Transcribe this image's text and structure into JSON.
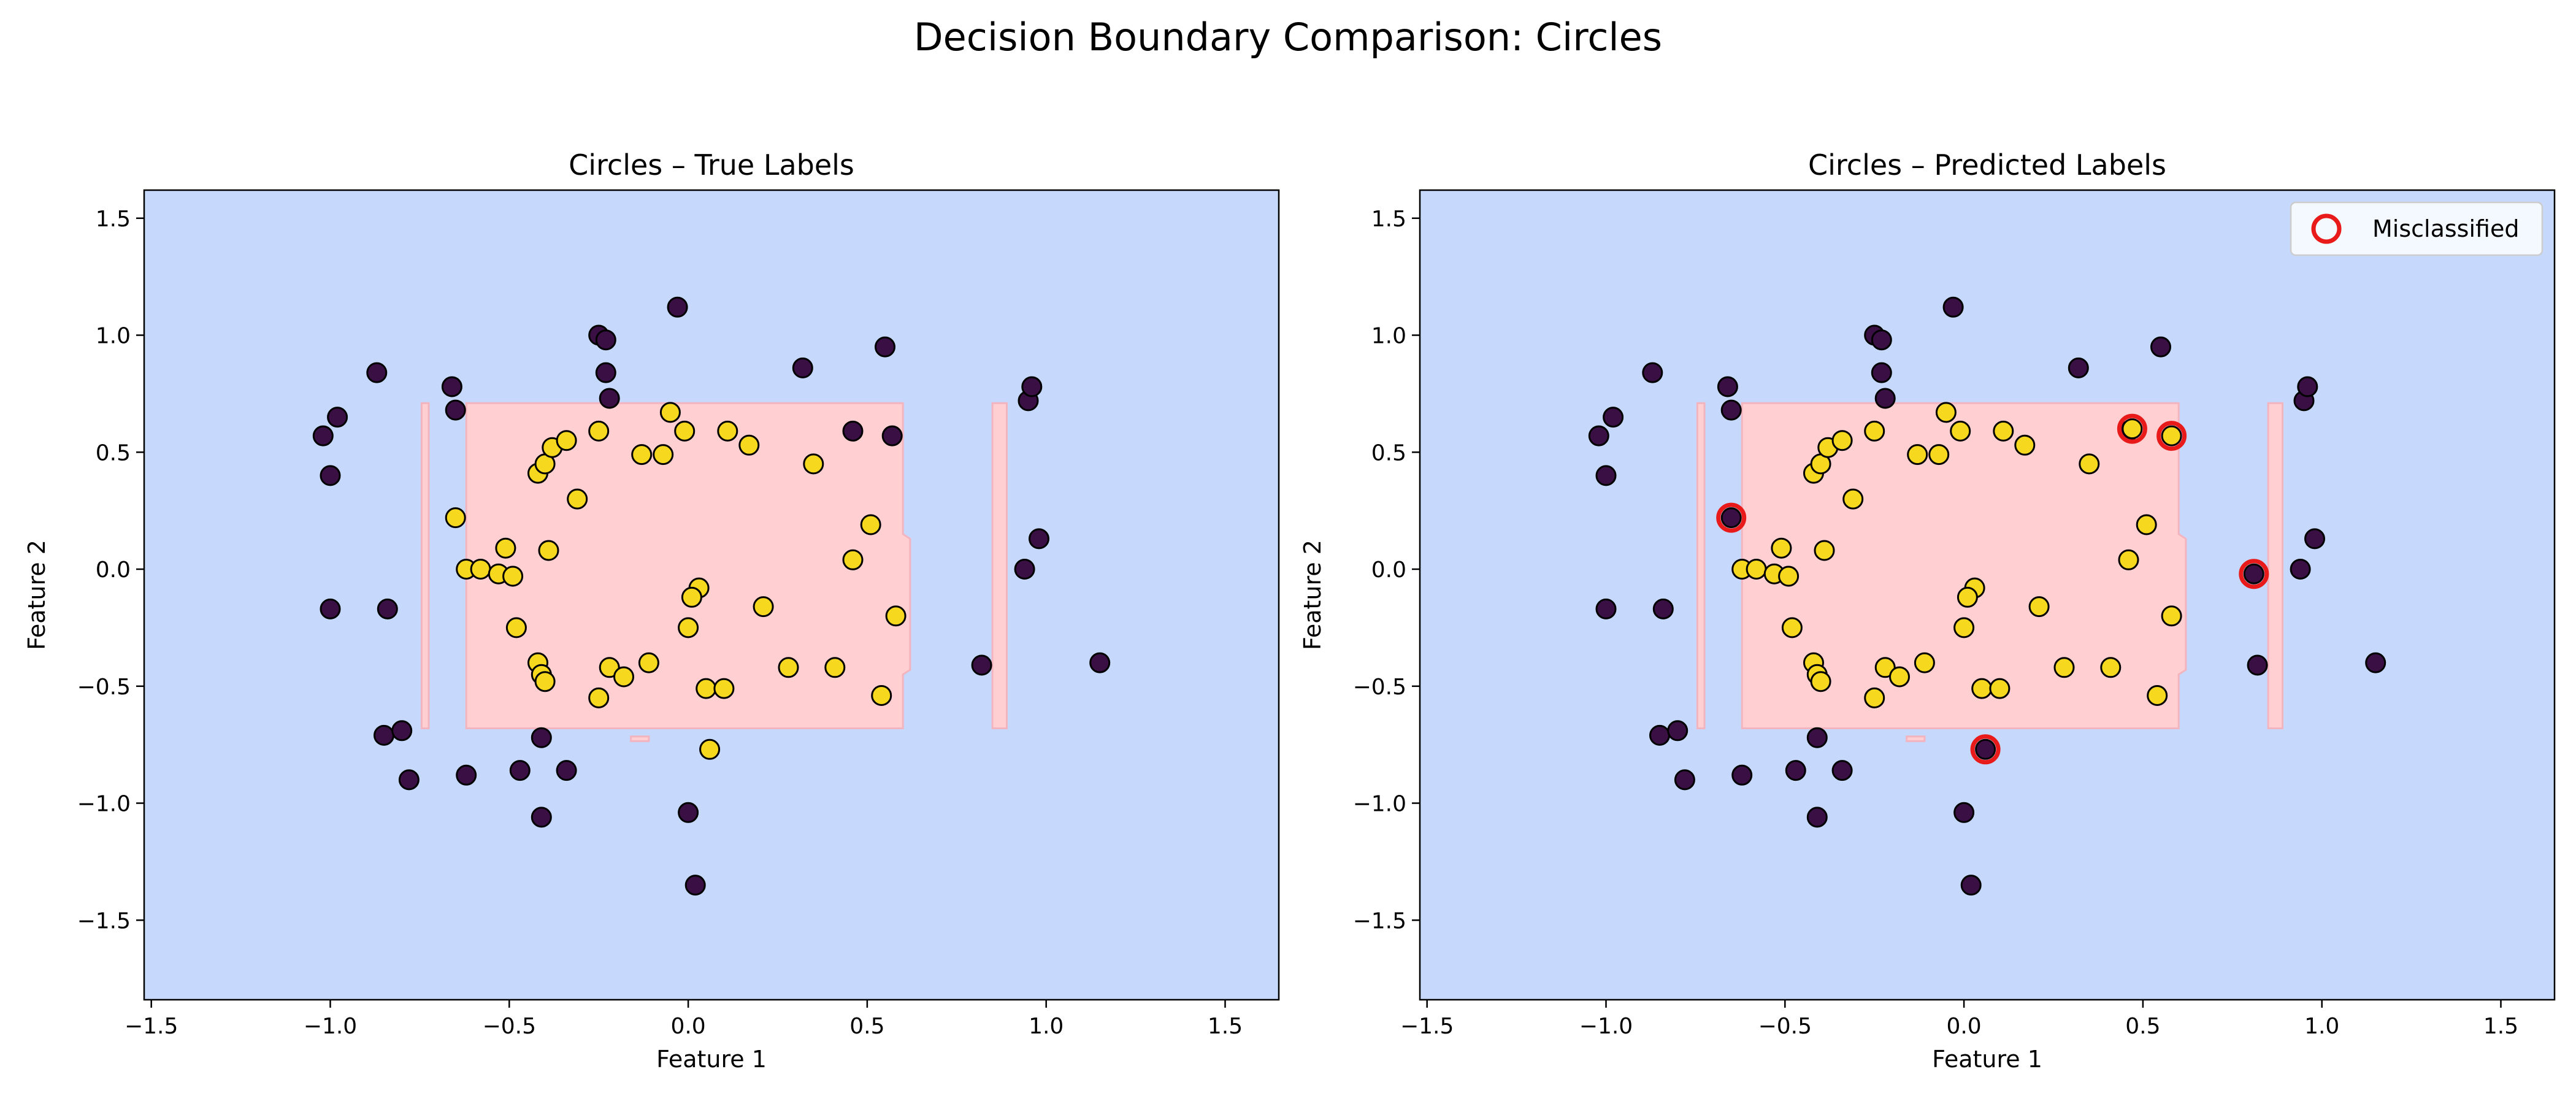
{
  "figure_title": "Decision Boundary Comparison: Circles",
  "colors": {
    "background_class0": "#c6d9fd",
    "region_class1": "#ffcfd2",
    "region_edge": "#f2b4be",
    "point_class0": "#3a0f44",
    "point_class1": "#f6d81e",
    "point_edge": "#000000",
    "misclassified": "#e81a1a"
  },
  "chart_data": [
    {
      "type": "scatter",
      "title": "Circles – True Labels",
      "xlabel": "Feature 1",
      "ylabel": "Feature 2",
      "xlim": [
        -1.52,
        1.65
      ],
      "ylim": [
        -1.84,
        1.62
      ],
      "xticks": [
        -1.5,
        -1.0,
        -0.5,
        0.0,
        0.5,
        1.0,
        1.5
      ],
      "xtick_labels": [
        "−1.5",
        "−1.0",
        "−0.5",
        "0.0",
        "0.5",
        "1.0",
        "1.5"
      ],
      "yticks": [
        1.5,
        1.0,
        0.5,
        0.0,
        -0.5,
        -1.0,
        -1.5
      ],
      "ytick_labels": [
        "1.5",
        "1.0",
        "0.5",
        "0.0",
        "−0.5",
        "−1.0",
        "−1.5"
      ],
      "grid": false,
      "decision_regions": [
        {
          "label": 1,
          "points": [
            [
              -0.62,
              0.71
            ],
            [
              0.6,
              0.71
            ],
            [
              0.6,
              0.15
            ],
            [
              0.62,
              0.13
            ],
            [
              0.62,
              -0.43
            ],
            [
              0.6,
              -0.45
            ],
            [
              0.6,
              -0.68
            ],
            [
              -0.62,
              -0.68
            ]
          ]
        },
        {
          "label": 1,
          "points": [
            [
              -0.745,
              0.71
            ],
            [
              -0.725,
              0.71
            ],
            [
              -0.725,
              -0.68
            ],
            [
              -0.745,
              -0.68
            ]
          ]
        },
        {
          "label": 1,
          "points": [
            [
              0.85,
              0.71
            ],
            [
              0.89,
              0.71
            ],
            [
              0.89,
              -0.68
            ],
            [
              0.85,
              -0.68
            ]
          ]
        },
        {
          "label": 1,
          "points": [
            [
              -0.16,
              -0.715
            ],
            [
              -0.11,
              -0.715
            ],
            [
              -0.11,
              -0.735
            ],
            [
              -0.16,
              -0.735
            ]
          ]
        }
      ],
      "class0": {
        "x": [
          -1.02,
          -1.0,
          -0.98,
          -0.87,
          -0.66,
          -0.65,
          -0.25,
          -0.23,
          -0.23,
          -0.22,
          -0.03,
          0.32,
          0.46,
          0.55,
          0.57,
          0.95,
          0.96,
          -1.0,
          -0.84,
          -0.85,
          -0.8,
          -0.78,
          -0.62,
          -0.47,
          -0.41,
          -0.41,
          -0.34,
          0.0,
          0.02,
          0.82,
          0.94,
          0.98,
          1.15
        ],
        "y": [
          0.57,
          0.4,
          0.65,
          0.84,
          0.78,
          0.68,
          1.0,
          0.98,
          0.84,
          0.73,
          1.12,
          0.86,
          0.59,
          0.95,
          0.57,
          0.72,
          0.78,
          -0.17,
          -0.17,
          -0.71,
          -0.69,
          -0.9,
          -0.88,
          -0.86,
          -0.72,
          -1.06,
          -0.86,
          -1.04,
          -1.35,
          -0.41,
          0.0,
          0.13,
          -0.4
        ]
      },
      "class1": {
        "x": [
          -0.65,
          -0.62,
          -0.58,
          -0.53,
          -0.51,
          -0.49,
          -0.48,
          -0.42,
          -0.4,
          -0.38,
          -0.39,
          -0.34,
          -0.31,
          -0.25,
          -0.13,
          -0.07,
          -0.05,
          -0.01,
          0.03,
          0.11,
          0.17,
          0.35,
          0.46,
          0.51,
          0.58,
          -0.42,
          -0.41,
          -0.4,
          -0.25,
          -0.22,
          -0.18,
          -0.11,
          0.0,
          0.01,
          0.05,
          0.1,
          0.21,
          0.28,
          0.41,
          0.54,
          0.06
        ],
        "y": [
          0.22,
          0.0,
          0.0,
          -0.02,
          0.09,
          -0.03,
          -0.25,
          0.41,
          0.45,
          0.52,
          0.08,
          0.55,
          0.3,
          0.59,
          0.49,
          0.49,
          0.67,
          0.59,
          -0.08,
          0.59,
          0.53,
          0.45,
          0.04,
          0.19,
          -0.2,
          -0.4,
          -0.45,
          -0.48,
          -0.55,
          -0.42,
          -0.46,
          -0.4,
          -0.25,
          -0.12,
          -0.51,
          -0.51,
          -0.16,
          -0.42,
          -0.42,
          -0.54,
          -0.77
        ]
      }
    },
    {
      "type": "scatter",
      "title": "Circles – Predicted Labels",
      "xlabel": "Feature 1",
      "ylabel": "Feature 2",
      "xlim": [
        -1.52,
        1.65
      ],
      "ylim": [
        -1.84,
        1.62
      ],
      "xticks": [
        -1.5,
        -1.0,
        -0.5,
        0.0,
        0.5,
        1.0,
        1.5
      ],
      "xtick_labels": [
        "−1.5",
        "−1.0",
        "−0.5",
        "0.0",
        "0.5",
        "1.0",
        "1.5"
      ],
      "yticks": [
        1.5,
        1.0,
        0.5,
        0.0,
        -0.5,
        -1.0,
        -1.5
      ],
      "ytick_labels": [
        "1.5",
        "1.0",
        "0.5",
        "0.0",
        "−0.5",
        "−1.0",
        "−1.5"
      ],
      "grid": false,
      "legend": {
        "position": "top-right",
        "entries": [
          "Misclassified"
        ]
      },
      "decision_regions": [
        {
          "label": 1,
          "points": [
            [
              -0.62,
              0.71
            ],
            [
              0.6,
              0.71
            ],
            [
              0.6,
              0.15
            ],
            [
              0.62,
              0.13
            ],
            [
              0.62,
              -0.43
            ],
            [
              0.6,
              -0.45
            ],
            [
              0.6,
              -0.68
            ],
            [
              -0.62,
              -0.68
            ]
          ]
        },
        {
          "label": 1,
          "points": [
            [
              -0.745,
              0.71
            ],
            [
              -0.725,
              0.71
            ],
            [
              -0.725,
              -0.68
            ],
            [
              -0.745,
              -0.68
            ]
          ]
        },
        {
          "label": 1,
          "points": [
            [
              0.85,
              0.71
            ],
            [
              0.89,
              0.71
            ],
            [
              0.89,
              -0.68
            ],
            [
              0.85,
              -0.68
            ]
          ]
        },
        {
          "label": 1,
          "points": [
            [
              -0.16,
              -0.715
            ],
            [
              -0.11,
              -0.715
            ],
            [
              -0.11,
              -0.735
            ],
            [
              -0.16,
              -0.735
            ]
          ]
        }
      ],
      "class0": {
        "x": [
          -1.02,
          -1.0,
          -0.98,
          -0.87,
          -0.66,
          -0.65,
          -0.25,
          -0.23,
          -0.23,
          -0.22,
          -0.03,
          0.32,
          0.46,
          0.55,
          0.95,
          0.96,
          -1.0,
          -0.84,
          -0.85,
          -0.8,
          -0.78,
          -0.62,
          -0.47,
          -0.41,
          -0.41,
          -0.34,
          0.0,
          0.02,
          0.82,
          0.94,
          0.98,
          1.15,
          -0.65,
          0.06,
          0.81
        ],
        "y": [
          0.57,
          0.4,
          0.65,
          0.84,
          0.78,
          0.68,
          1.0,
          0.98,
          0.84,
          0.73,
          1.12,
          0.86,
          0.59,
          0.95,
          0.72,
          0.78,
          -0.17,
          -0.17,
          -0.71,
          -0.69,
          -0.9,
          -0.88,
          -0.86,
          -0.72,
          -1.06,
          -0.86,
          -1.04,
          -1.35,
          -0.41,
          0.0,
          0.13,
          -0.4,
          0.22,
          -0.77,
          -0.02
        ]
      },
      "class1": {
        "x": [
          -0.62,
          -0.58,
          -0.53,
          -0.51,
          -0.49,
          -0.48,
          -0.42,
          -0.4,
          -0.38,
          -0.39,
          -0.34,
          -0.31,
          -0.25,
          -0.13,
          -0.07,
          -0.05,
          -0.01,
          0.03,
          0.11,
          0.17,
          0.35,
          0.46,
          0.51,
          0.58,
          -0.42,
          -0.41,
          -0.4,
          -0.25,
          -0.22,
          -0.18,
          -0.11,
          0.0,
          0.01,
          0.05,
          0.1,
          0.21,
          0.28,
          0.41,
          0.54,
          0.47,
          0.58
        ],
        "y": [
          0.0,
          0.0,
          -0.02,
          0.09,
          -0.03,
          -0.25,
          0.41,
          0.45,
          0.52,
          0.08,
          0.55,
          0.3,
          0.59,
          0.49,
          0.49,
          0.67,
          0.59,
          -0.08,
          0.59,
          0.53,
          0.45,
          0.04,
          0.19,
          -0.2,
          -0.4,
          -0.45,
          -0.48,
          -0.55,
          -0.42,
          -0.46,
          -0.4,
          -0.25,
          -0.12,
          -0.51,
          -0.51,
          -0.16,
          -0.42,
          -0.42,
          -0.54,
          0.6,
          0.57
        ]
      },
      "misclassified": {
        "x": [
          -0.65,
          0.47,
          0.58,
          0.81,
          0.06
        ],
        "y": [
          0.22,
          0.6,
          0.57,
          -0.02,
          -0.77
        ]
      }
    }
  ]
}
